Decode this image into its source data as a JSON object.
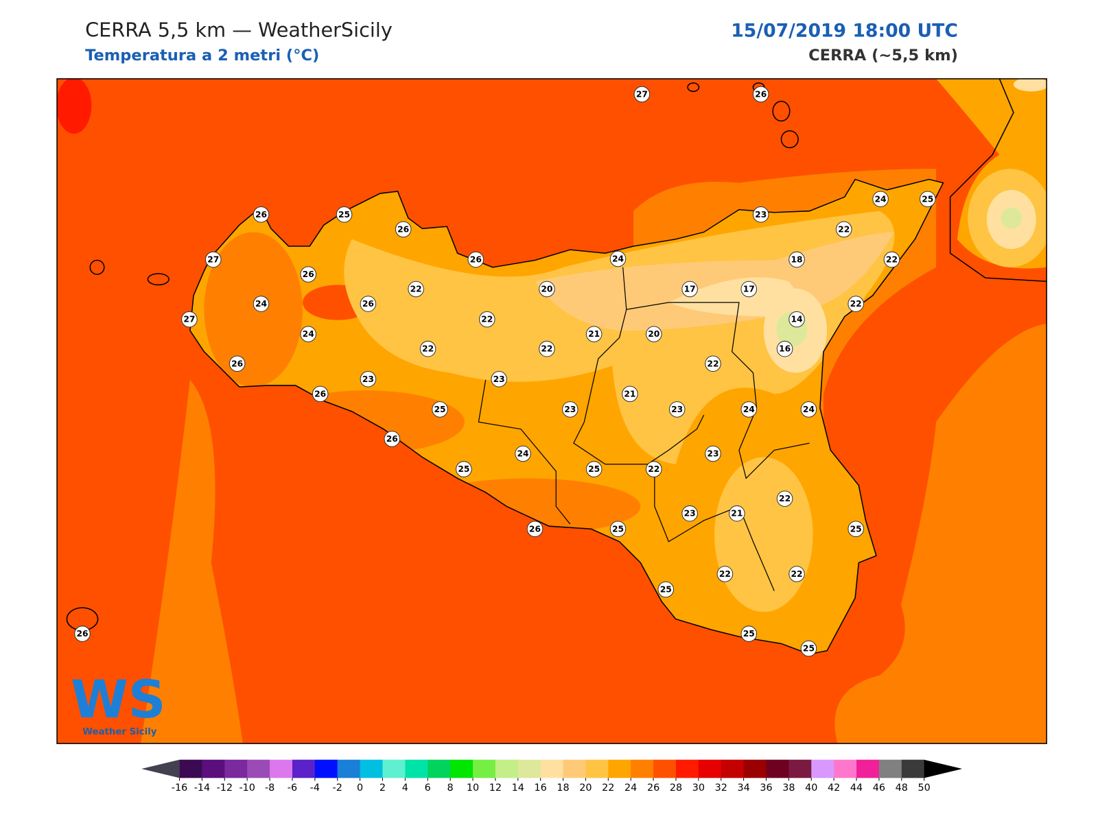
{
  "header": {
    "title": "CERRA 5,5 km — WeatherSicily",
    "subtitle": "Temperatura a 2 metri (°C)",
    "datetime": "15/07/2019 18:00 UTC",
    "model": "CERRA (~5,5 km)"
  },
  "logo": {
    "mark": "WS",
    "name": "Weather Sicily"
  },
  "stations": [
    27,
    26,
    26,
    25,
    26,
    27,
    26,
    26,
    24,
    23,
    24,
    25,
    22,
    18,
    22,
    24,
    26,
    22,
    20,
    17,
    17,
    22,
    27,
    24,
    22,
    21,
    20,
    14,
    16,
    26,
    22,
    22,
    22,
    23,
    23,
    26,
    25,
    23,
    21,
    23,
    24,
    24,
    26,
    24,
    23,
    25,
    25,
    22,
    22,
    23,
    21,
    26,
    25,
    25,
    22,
    22,
    25,
    25,
    25,
    26
  ],
  "colorbar": {
    "ticks": [
      -16,
      -14,
      -12,
      -10,
      -8,
      -6,
      -4,
      -2,
      0,
      2,
      4,
      6,
      8,
      10,
      12,
      14,
      16,
      18,
      20,
      22,
      24,
      26,
      28,
      30,
      32,
      34,
      36,
      38,
      40,
      42,
      44,
      46,
      48,
      50
    ],
    "colors": [
      "#3c0a52",
      "#5a0f7d",
      "#7a2a9c",
      "#9b4bb5",
      "#dd77ee",
      "#5a22c8",
      "#0010ff",
      "#1a7fd6",
      "#00bfe0",
      "#5ef0d0",
      "#00e3a8",
      "#00d45c",
      "#00e600",
      "#77ee44",
      "#c4ee88",
      "#dde89a",
      "#ffe0a0",
      "#ffca78",
      "#ffc443",
      "#ffa500",
      "#ff8000",
      "#ff5000",
      "#ff1a00",
      "#e60000",
      "#c40000",
      "#9a0000",
      "#6e0020",
      "#7a1a40",
      "#d898ff",
      "#ff77cc",
      "#f0209a",
      "#808080",
      "#3a3a3a"
    ],
    "under": "#444050",
    "over": "#000000"
  }
}
